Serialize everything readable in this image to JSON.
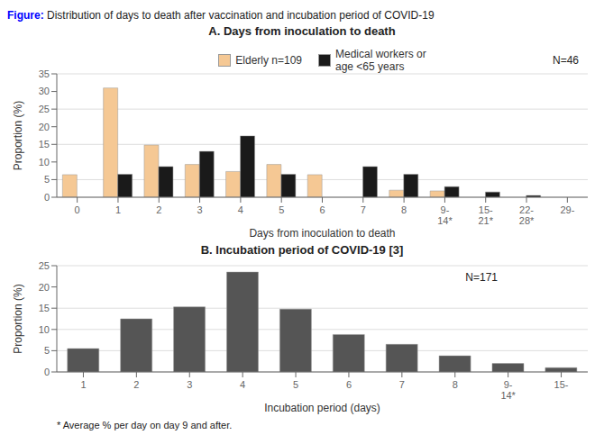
{
  "title": "Figure:",
  "subtitle": "Distribution of days to death after vaccination and incubation period of COVID-19",
  "chart_data": [
    {
      "type": "bar",
      "title": "A. Days from inoculation to death",
      "xlabel": "Days from inoculation to death",
      "ylabel": "Proportion (%)",
      "ylim": [
        0,
        35
      ],
      "yticks": [
        0,
        5,
        10,
        15,
        20,
        25,
        30,
        35
      ],
      "categories": [
        "0",
        "1",
        "2",
        "3",
        "4",
        "5",
        "6",
        "7",
        "8",
        "9-\n14*",
        "15-\n21*",
        "22-\n28*",
        "29-"
      ],
      "series": [
        {
          "name": "Elderly  n=109",
          "color": "#F5C894",
          "values": [
            6.4,
            31.0,
            14.8,
            9.3,
            7.3,
            9.3,
            6.4,
            0,
            2.0,
            1.8,
            0,
            0,
            0
          ]
        },
        {
          "name": "Medical workers or\nage  <65 years",
          "color": "#1a1a1a",
          "values": [
            0,
            6.5,
            8.7,
            13.0,
            17.4,
            6.5,
            0,
            8.7,
            6.5,
            3.0,
            1.5,
            0.5,
            0
          ]
        }
      ],
      "legend": "top",
      "grid": true,
      "annotations": [
        "N=46"
      ]
    },
    {
      "type": "bar",
      "title": "B. Incubation period of COVID-19 [3]",
      "xlabel": "Incubation period (days)",
      "ylabel": "Proportion (%)",
      "ylim": [
        0,
        25
      ],
      "yticks": [
        0,
        5,
        10,
        15,
        20,
        25
      ],
      "categories": [
        "1",
        "2",
        "3",
        "4",
        "5",
        "6",
        "7",
        "8",
        "9-\n14*",
        "15-"
      ],
      "values": [
        5.5,
        12.5,
        15.3,
        23.5,
        14.8,
        8.8,
        6.5,
        3.8,
        2.0,
        1.0
      ],
      "color": "#555555",
      "grid": true,
      "annotations": [
        "N=171",
        "* Average % per day on day 9 and after."
      ]
    }
  ]
}
